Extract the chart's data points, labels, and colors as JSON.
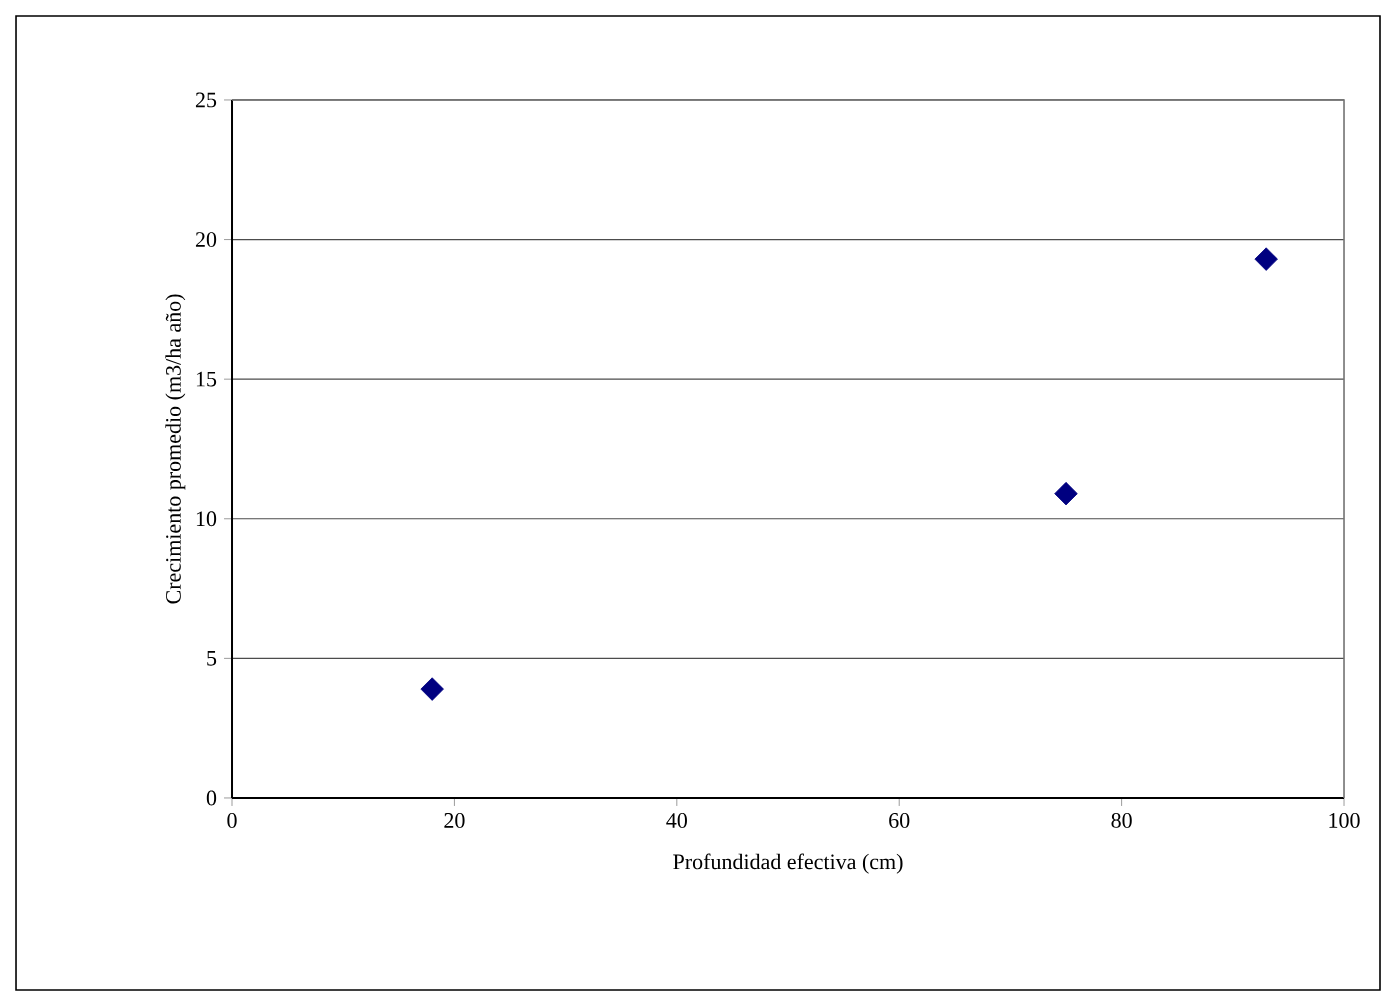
{
  "chart_data": {
    "type": "scatter",
    "xlabel": "Profundidad efectiva (cm)",
    "ylabel": "Crecimiento promedio (m3/ha año)",
    "x": [
      18,
      75,
      93
    ],
    "series": [
      {
        "color": "#000080",
        "values": [
          3.9,
          10.9,
          19.3
        ]
      }
    ],
    "xlim": [
      0,
      100
    ],
    "ylim": [
      0,
      25
    ],
    "xticks": [
      0,
      20,
      40,
      60,
      80,
      100
    ],
    "yticks": [
      0,
      5,
      10,
      15,
      20,
      25
    ],
    "grid": "y",
    "marker": "diamond"
  }
}
